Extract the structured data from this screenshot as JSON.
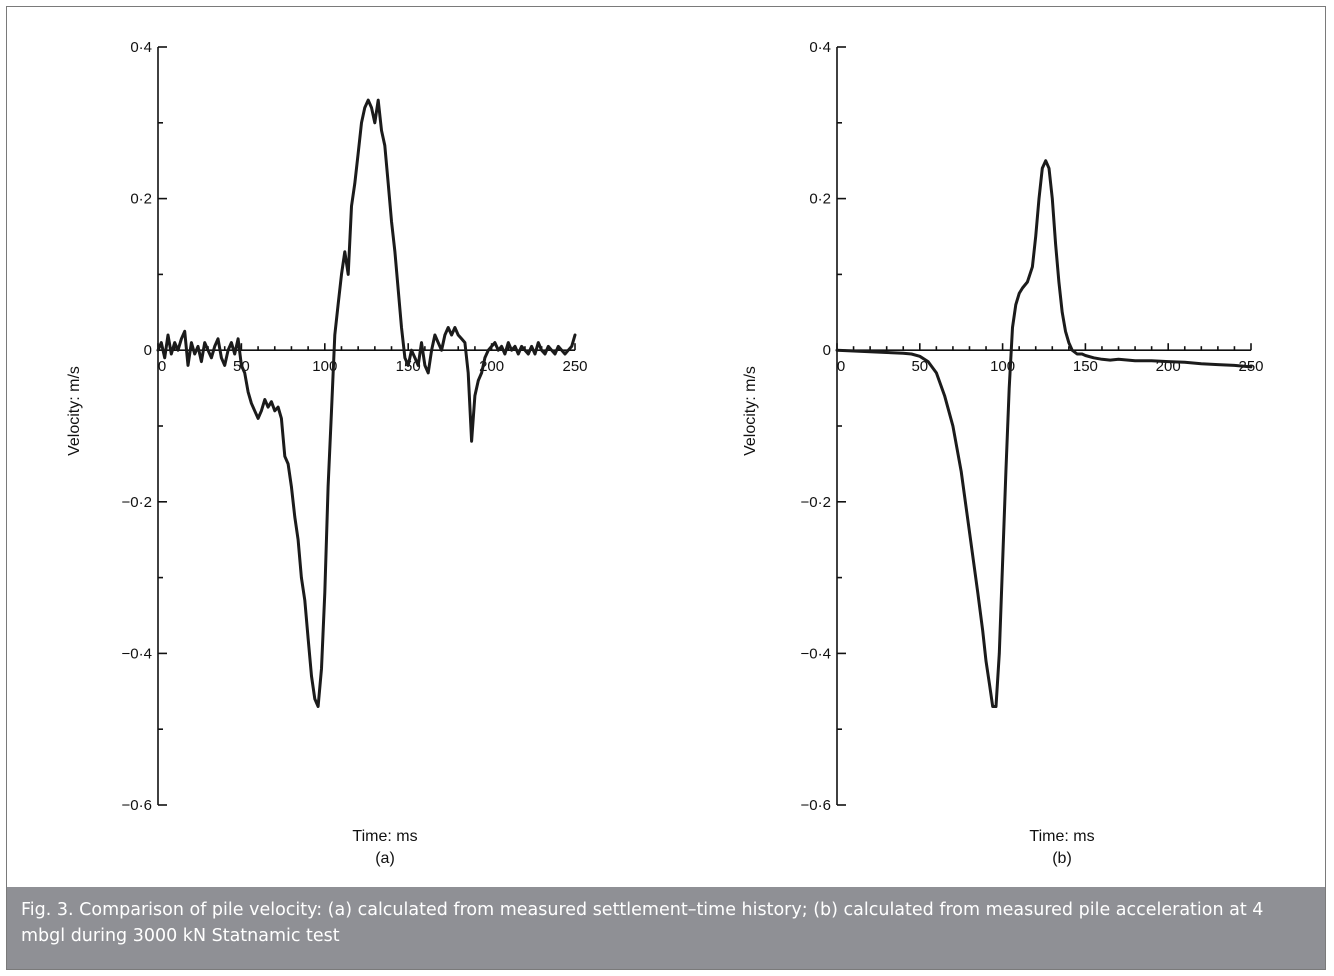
{
  "figure": {
    "caption": "Fig. 3. Comparison of pile velocity: (a) calculated from measured settlement–time history; (b) calculated from measured pile acceleration at 4 mbgl during 3000 kN Statnamic test"
  },
  "chart_data": [
    {
      "type": "line",
      "panel_label": "(a)",
      "xlabel": "Time: ms",
      "ylabel": "Velocity: m/s",
      "xlim": [
        0,
        250
      ],
      "ylim": [
        -0.6,
        0.4
      ],
      "x_ticks": [
        "0",
        "50",
        "100",
        "150",
        "200",
        "250"
      ],
      "y_ticks": [
        "0·4",
        "0·2",
        "0",
        "−0·2",
        "−0·4",
        "−0·6"
      ],
      "x_tick_values": [
        0,
        50,
        100,
        150,
        200,
        250
      ],
      "y_tick_values": [
        0.4,
        0.2,
        0,
        -0.2,
        -0.4,
        -0.6
      ],
      "grid": false,
      "series": [
        {
          "x": [
            0,
            2,
            4,
            6,
            8,
            10,
            12,
            14,
            16,
            18,
            20,
            22,
            24,
            26,
            28,
            30,
            32,
            34,
            36,
            38,
            40,
            42,
            44,
            46,
            48,
            50,
            52,
            54,
            56,
            58,
            60,
            62,
            64,
            66,
            68,
            70,
            72,
            74,
            76,
            78,
            80,
            82,
            84,
            86,
            88,
            90,
            92,
            94,
            96,
            98,
            100,
            102,
            104,
            106,
            108,
            110,
            112,
            114,
            116,
            118,
            120,
            122,
            124,
            126,
            128,
            130,
            132,
            134,
            136,
            138,
            140,
            142,
            144,
            146,
            148,
            150,
            152,
            154,
            156,
            158,
            160,
            162,
            164,
            166,
            168,
            170,
            172,
            174,
            176,
            178,
            180,
            182,
            184,
            186,
            188,
            190,
            192,
            194,
            196,
            198,
            200,
            202,
            204,
            206,
            208,
            210,
            212,
            214,
            216,
            218,
            220,
            222,
            224,
            226,
            228,
            230,
            232,
            234,
            236,
            238,
            240,
            242,
            244,
            246,
            248,
            250
          ],
          "y": [
            0.0,
            0.01,
            -0.01,
            0.02,
            -0.005,
            0.01,
            0.0,
            0.015,
            0.025,
            -0.02,
            0.01,
            -0.005,
            0.005,
            -0.015,
            0.01,
            0.0,
            -0.01,
            0.005,
            0.015,
            -0.01,
            -0.02,
            0.0,
            0.01,
            -0.005,
            0.015,
            -0.02,
            -0.03,
            -0.055,
            -0.07,
            -0.08,
            -0.09,
            -0.08,
            -0.065,
            -0.075,
            -0.068,
            -0.08,
            -0.075,
            -0.09,
            -0.14,
            -0.15,
            -0.18,
            -0.22,
            -0.25,
            -0.3,
            -0.33,
            -0.38,
            -0.43,
            -0.46,
            -0.47,
            -0.42,
            -0.32,
            -0.18,
            -0.08,
            0.02,
            0.06,
            0.1,
            0.13,
            0.1,
            0.19,
            0.22,
            0.26,
            0.3,
            0.32,
            0.33,
            0.32,
            0.3,
            0.33,
            0.29,
            0.27,
            0.22,
            0.17,
            0.13,
            0.08,
            0.03,
            -0.01,
            -0.02,
            0.0,
            -0.01,
            -0.02,
            0.01,
            -0.02,
            -0.03,
            0.0,
            0.02,
            0.01,
            0.0,
            0.02,
            0.03,
            0.02,
            0.03,
            0.02,
            0.015,
            0.01,
            -0.03,
            -0.12,
            -0.06,
            -0.04,
            -0.03,
            -0.01,
            0.0,
            0.005,
            0.01,
            0.0,
            0.005,
            -0.005,
            0.01,
            0.0,
            0.005,
            -0.005,
            0.005,
            0.0,
            -0.005,
            0.005,
            -0.005,
            0.01,
            0.0,
            -0.005,
            0.005,
            0.0,
            -0.005,
            0.005,
            0.0,
            -0.005,
            0.0,
            0.005,
            0.02
          ]
        }
      ]
    },
    {
      "type": "line",
      "panel_label": "(b)",
      "xlabel": "Time: ms",
      "ylabel": "Velocity: m/s",
      "xlim": [
        0,
        250
      ],
      "ylim": [
        -0.6,
        0.4
      ],
      "x_ticks": [
        "0",
        "50",
        "100",
        "150",
        "200",
        "250"
      ],
      "y_ticks": [
        "0·4",
        "0·2",
        "0",
        "−0·2",
        "−0·4",
        "−0·6"
      ],
      "x_tick_values": [
        0,
        50,
        100,
        150,
        200,
        250
      ],
      "y_tick_values": [
        0.4,
        0.2,
        0,
        -0.2,
        -0.4,
        -0.6
      ],
      "grid": false,
      "series": [
        {
          "x": [
            0,
            10,
            20,
            30,
            40,
            45,
            50,
            55,
            60,
            65,
            70,
            75,
            80,
            85,
            88,
            90,
            92,
            94,
            96,
            98,
            100,
            102,
            104,
            106,
            108,
            110,
            112,
            115,
            118,
            120,
            122,
            124,
            126,
            128,
            130,
            132,
            134,
            136,
            138,
            140,
            142,
            145,
            148,
            150,
            155,
            160,
            165,
            170,
            180,
            190,
            200,
            210,
            220,
            230,
            240,
            250
          ],
          "y": [
            0.0,
            -0.001,
            -0.002,
            -0.003,
            -0.004,
            -0.005,
            -0.008,
            -0.015,
            -0.03,
            -0.06,
            -0.1,
            -0.16,
            -0.24,
            -0.32,
            -0.37,
            -0.41,
            -0.44,
            -0.47,
            -0.47,
            -0.4,
            -0.28,
            -0.16,
            -0.05,
            0.03,
            0.06,
            0.075,
            0.082,
            0.09,
            0.11,
            0.15,
            0.2,
            0.24,
            0.25,
            0.24,
            0.2,
            0.14,
            0.09,
            0.05,
            0.025,
            0.01,
            0.0,
            -0.005,
            -0.005,
            -0.007,
            -0.01,
            -0.012,
            -0.013,
            -0.012,
            -0.014,
            -0.014,
            -0.015,
            -0.016,
            -0.018,
            -0.019,
            -0.02,
            -0.022
          ]
        }
      ]
    }
  ]
}
